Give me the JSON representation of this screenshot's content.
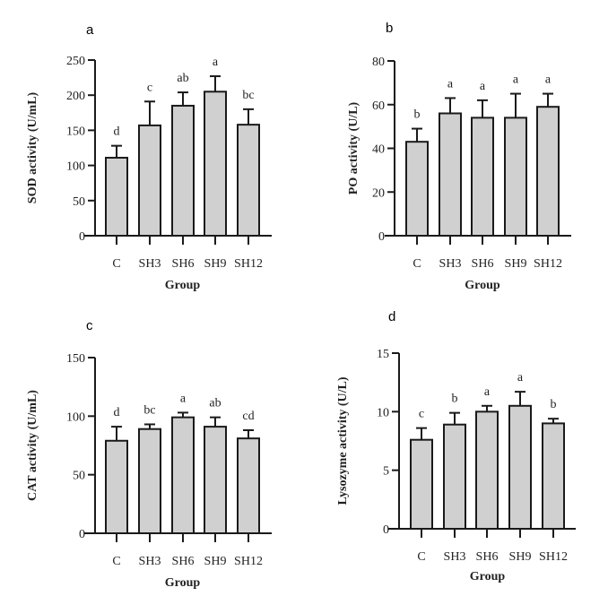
{
  "chart_data": [
    {
      "type": "bar",
      "panel": "a",
      "categories": [
        "C",
        "SH3",
        "SH6",
        "SH9",
        "SH12"
      ],
      "values": [
        111,
        157,
        185,
        205,
        158
      ],
      "error_upper": [
        128,
        191,
        204,
        227,
        180
      ],
      "significance": [
        "d",
        "c",
        "ab",
        "a",
        "bc"
      ],
      "ylabel": "SOD activity (U/mL)",
      "xlabel": "Group",
      "ylim": [
        0,
        250
      ],
      "yticks": [
        0,
        50,
        100,
        150,
        200,
        250
      ],
      "grid": false
    },
    {
      "type": "bar",
      "panel": "b",
      "categories": [
        "C",
        "SH3",
        "SH6",
        "SH9",
        "SH12"
      ],
      "values": [
        43,
        56,
        54,
        54,
        59
      ],
      "error_upper": [
        49,
        63,
        62,
        65,
        65
      ],
      "significance": [
        "b",
        "a",
        "a",
        "a",
        "a"
      ],
      "ylabel": "PO activity (U/L)",
      "xlabel": "Group",
      "ylim": [
        0,
        80
      ],
      "yticks": [
        0,
        20,
        40,
        60,
        80
      ],
      "grid": false
    },
    {
      "type": "bar",
      "panel": "c",
      "categories": [
        "C",
        "SH3",
        "SH6",
        "SH9",
        "SH12"
      ],
      "values": [
        79,
        89,
        99,
        91,
        81
      ],
      "error_upper": [
        91,
        93,
        103,
        99,
        88
      ],
      "significance": [
        "d",
        "bc",
        "a",
        "ab",
        "cd"
      ],
      "ylabel": "CAT activity (U/mL)",
      "xlabel": "Group",
      "ylim": [
        0,
        150
      ],
      "yticks": [
        0,
        50,
        100,
        150
      ],
      "grid": false
    },
    {
      "type": "bar",
      "panel": "d",
      "categories": [
        "C",
        "SH3",
        "SH6",
        "SH9",
        "SH12"
      ],
      "values": [
        7.6,
        8.9,
        10.0,
        10.5,
        9.0
      ],
      "error_upper": [
        8.6,
        9.9,
        10.5,
        11.7,
        9.4
      ],
      "significance": [
        "c",
        "b",
        "a",
        "a",
        "b"
      ],
      "ylabel": "Lysozyme activity (U/L)",
      "xlabel": "Group",
      "ylim": [
        0,
        15
      ],
      "yticks": [
        0,
        5,
        10,
        15
      ],
      "grid": false
    }
  ]
}
